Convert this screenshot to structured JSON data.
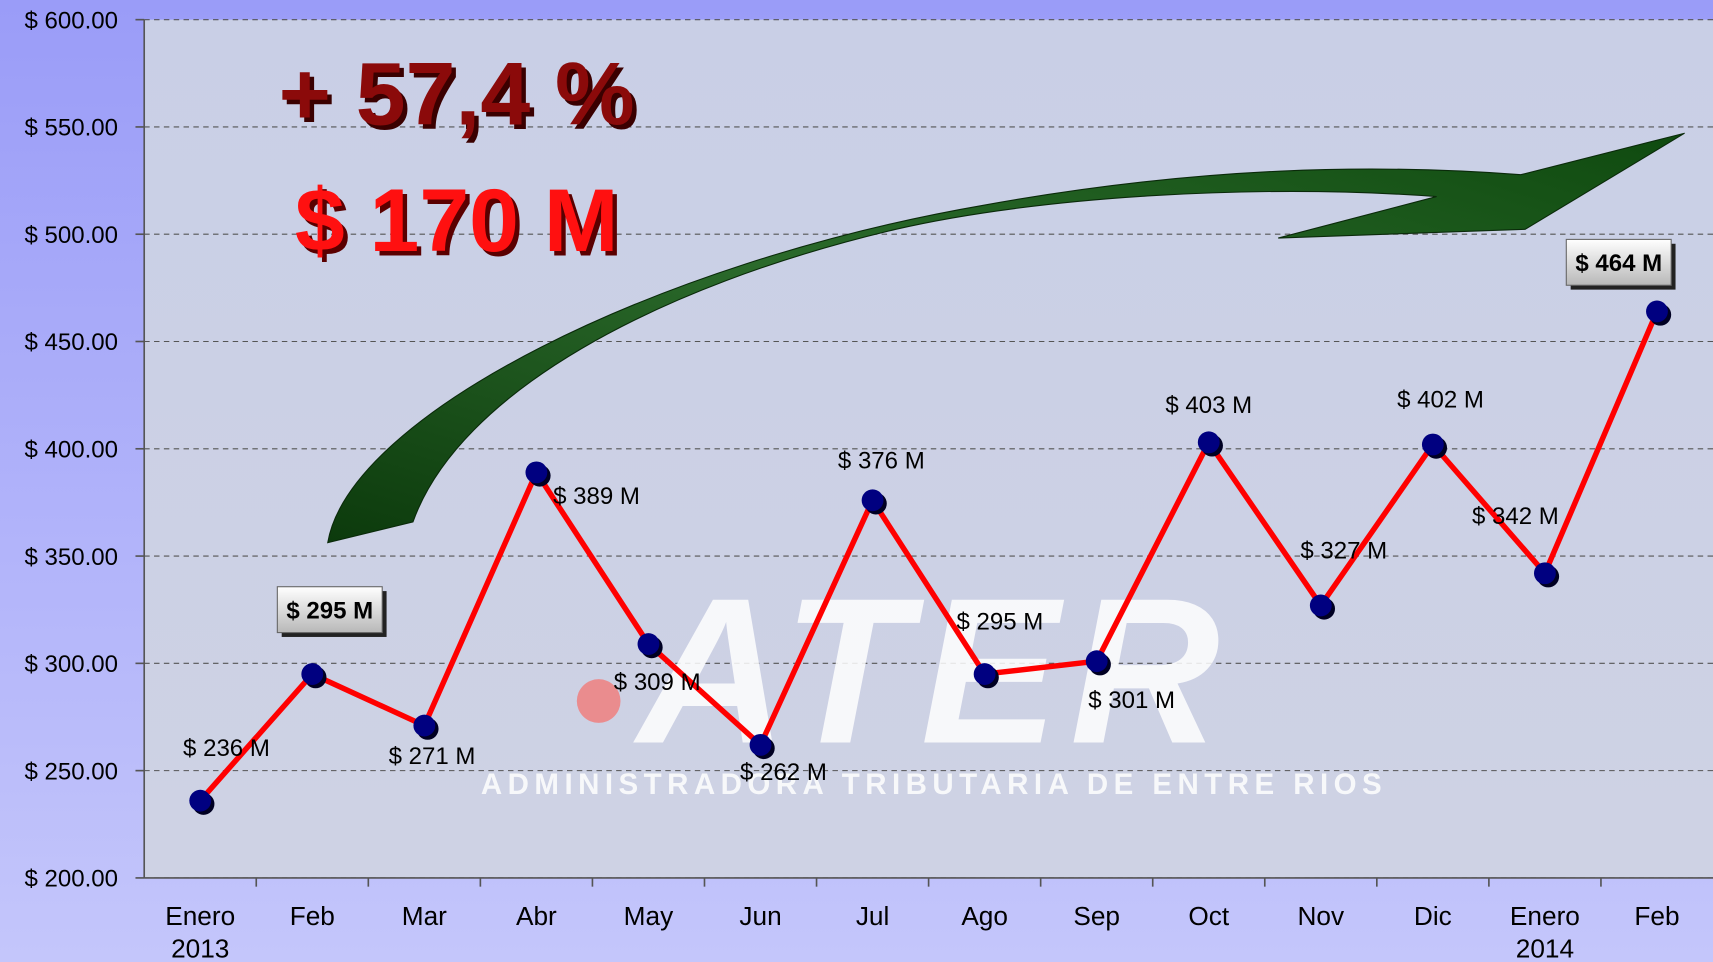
{
  "chart_data": {
    "type": "line",
    "categories": [
      [
        "Enero",
        "2013"
      ],
      [
        "Feb"
      ],
      [
        "Mar"
      ],
      [
        "Abr"
      ],
      [
        "May"
      ],
      [
        "Jun"
      ],
      [
        "Jul"
      ],
      [
        "Ago"
      ],
      [
        "Sep"
      ],
      [
        "Oct"
      ],
      [
        "Nov"
      ],
      [
        "Dic"
      ],
      [
        "Enero",
        "2014"
      ],
      [
        "Feb"
      ]
    ],
    "series": [
      {
        "color": "#ff0000",
        "marker_color": "#000080",
        "values": [
          236,
          295,
          271,
          389,
          309,
          262,
          376,
          295,
          301,
          403,
          327,
          402,
          342,
          464
        ],
        "value_labels": [
          "$ 236 M",
          "$ 295 M",
          "$ 271 M",
          "$ 389 M",
          "$ 309 M",
          "$ 262 M",
          "$ 376 M",
          "$ 295 M",
          "$ 301 M",
          "$ 403 M",
          "$ 327 M",
          "$ 402 M",
          "$ 342 M",
          "$ 464 M"
        ],
        "boxed_labels": [
          1,
          13
        ]
      }
    ],
    "ylim": [
      200,
      600
    ],
    "yticks": [
      {
        "value": 200,
        "label": "$ 200.00"
      },
      {
        "value": 250,
        "label": "$ 250.00"
      },
      {
        "value": 300,
        "label": "$ 300.00"
      },
      {
        "value": 350,
        "label": "$ 350.00"
      },
      {
        "value": 400,
        "label": "$ 400.00"
      },
      {
        "value": 450,
        "label": "$ 450.00"
      },
      {
        "value": 500,
        "label": "$ 500.00"
      },
      {
        "value": 550,
        "label": "$ 550.00"
      },
      {
        "value": 600,
        "label": "$ 600.00"
      }
    ],
    "grid": true,
    "annotations": [
      "+ 57,4 %",
      "$ 170 M"
    ],
    "watermark": {
      "logo": "ATER",
      "text": "ADMINISTRADORA TRIBUTARIA DE ENTRE RIOS"
    }
  }
}
